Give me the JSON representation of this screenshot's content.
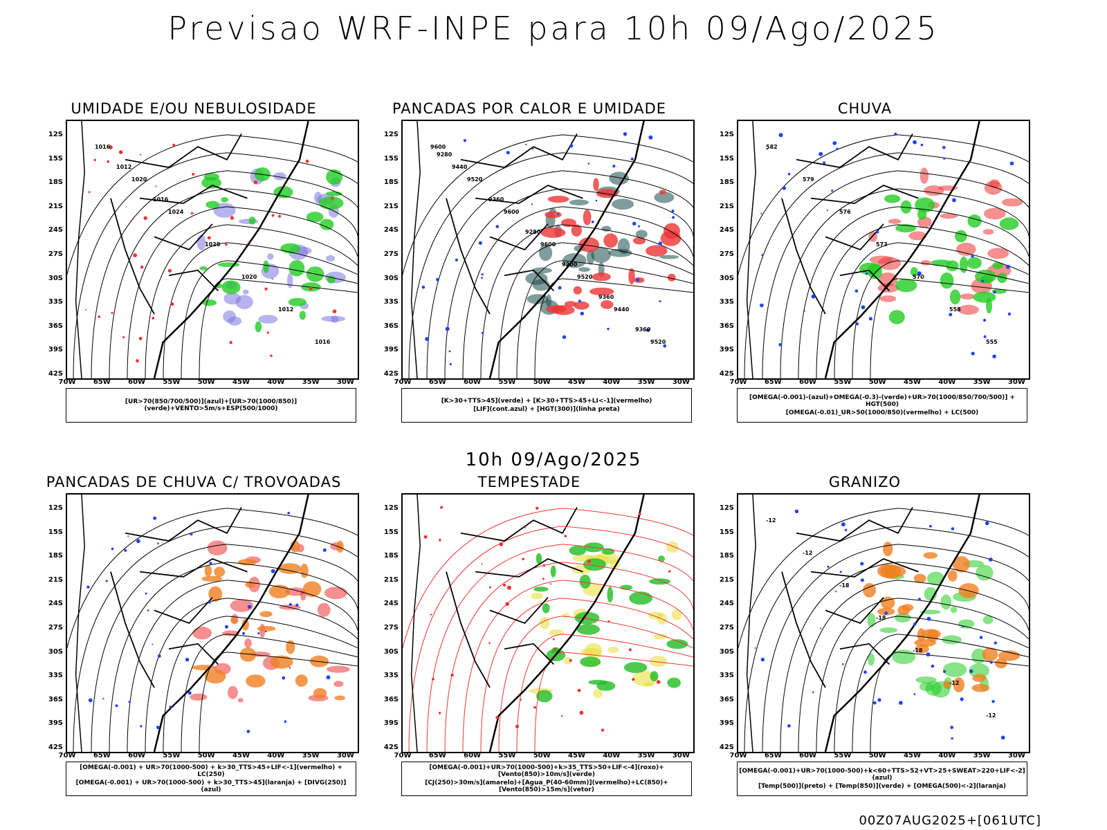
{
  "header": {
    "title": "Previsao WRF-INPE  para 10h 09/Ago/2025"
  },
  "middle": {
    "title": "10h 09/Ago/2025"
  },
  "footer": {
    "run_info": "00Z07AUG2025+[061UTC]"
  },
  "axes": {
    "lat_labels": [
      "12S",
      "15S",
      "18S",
      "21S",
      "24S",
      "27S",
      "30S",
      "33S",
      "36S",
      "39S",
      "42S"
    ],
    "lon_labels": [
      "70W",
      "65W",
      "60W",
      "55W",
      "50W",
      "45W",
      "40W",
      "35W",
      "30W"
    ]
  },
  "panels": [
    {
      "title": "UMIDADE E/OU NEBULOSIDADE",
      "legend_lines": [
        "[UR>70(850/700/500)](azul)+[UR>70(1000/850)](verde)+VENTO>5m/s+ESP(500/1000)"
      ],
      "contour_labels": [
        "1016",
        "1020",
        "1024",
        "1028",
        "1020",
        "1012",
        "1016",
        "1012",
        "1016"
      ],
      "colors": {
        "layer1": "#7b74e0",
        "layer2": "#22cc22",
        "layer3": "#ee3333"
      }
    },
    {
      "title": "PANCADAS POR CALOR E UMIDADE",
      "legend_lines": [
        "[K>30+TTS>45](verde) + [K>30+TTS>45+LI<-1](vermelho)",
        "[LIF](cont.azul) + [HGT(300)](linha preta)"
      ],
      "contour_labels": [
        "9600",
        "9520",
        "9600",
        "9600",
        "9520",
        "9440",
        "9520",
        "9440",
        "9360",
        "9280",
        "9200",
        "9360",
        "9360",
        "9280"
      ],
      "colors": {
        "layer1": "#1a4b4b",
        "layer2": "#ee3333",
        "layer3": "#2244ee"
      }
    },
    {
      "title": "CHUVA",
      "legend_lines": [
        "[OMEGA(-0.001)-(azul)+OMEGA(-0.3)-(verde)+UR>70(1000/850/700/500)] + HGT(500)",
        "[OMEGA(-0.01)_UR>50(1000/850)(vermelho) + LC(500)"
      ],
      "contour_labels": [
        "582",
        "579",
        "576",
        "573",
        "570",
        "558",
        "555"
      ],
      "colors": {
        "layer1": "#ee3333",
        "layer2": "#22cc22",
        "layer3": "#2244ee"
      }
    },
    {
      "title": "PANCADAS DE CHUVA C/ TROVOADAS",
      "legend_lines": [
        "[OMEGA(-0.001) + UR>70(1000-500) + k>30_TTS>45+LIF<-1](vermelho) + LC(250)",
        "[OMEGA(-0.001) + UR>70(1000-500) + k>30_TTS>45](laranja) + [DIVG(250)](azul)"
      ],
      "contour_labels": [],
      "colors": {
        "layer1": "#ee3333",
        "layer2": "#f08020",
        "layer3": "#2244ee"
      }
    },
    {
      "title": "TEMPESTADE",
      "legend_lines": [
        "[OMEGA(-0.001)+UR>70(1000-500)+k>35_TTS>50+LIF<-4](roxo)+[Vento(850)>10m/s](verde)",
        "[CJ(250)>30m/s](amarelo)+[Agua_P(40-60mm)](vermelho)+LC(850)+[Vento(850)>15m/s](vetor)"
      ],
      "contour_labels": [],
      "colors": {
        "layer1": "#e8dc30",
        "layer2": "#22bb22",
        "layer3": "#ee3333"
      }
    },
    {
      "title": "GRANIZO",
      "legend_lines": [
        "[OMEGA(-0.001)+UR>70(1000-500)+k<60+TTS>52+VT>25+SWEAT>220+LIF<-2](azul)",
        "[Temp(500)](preto) + [Temp(850)](verde) + [OMEGA(500)<-2](laranja)"
      ],
      "contour_labels": [
        "-12",
        "-12",
        "-18",
        "-18",
        "-18",
        "-12",
        "-12"
      ],
      "colors": {
        "layer1": "#22cc22",
        "layer2": "#f08020",
        "layer3": "#2244ee"
      }
    }
  ]
}
